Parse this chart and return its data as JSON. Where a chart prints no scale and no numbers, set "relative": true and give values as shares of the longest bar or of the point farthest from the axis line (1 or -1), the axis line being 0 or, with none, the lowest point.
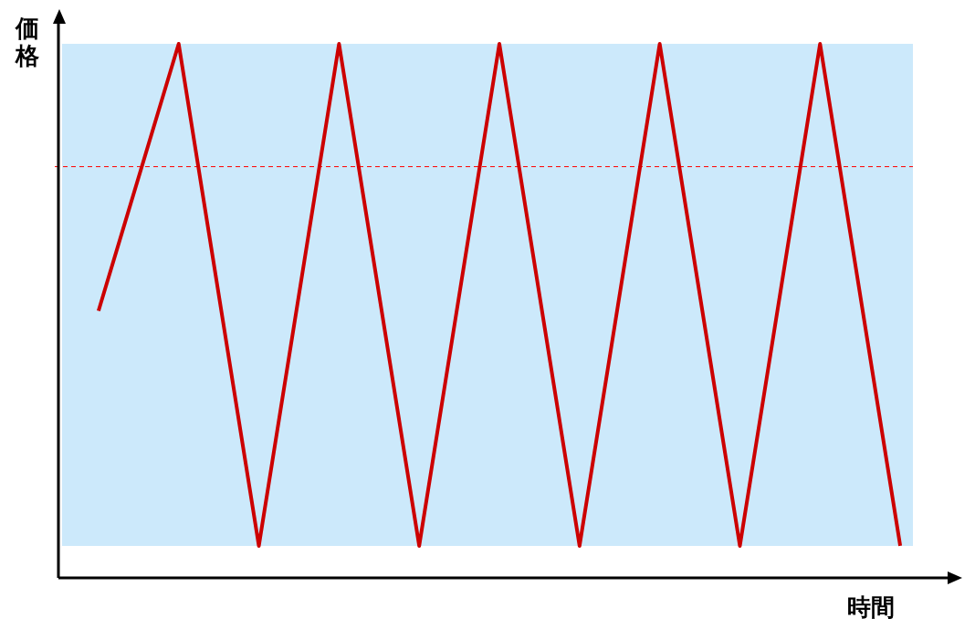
{
  "chart_data": {
    "type": "line",
    "xlabel": "時間",
    "ylabel": "価格",
    "relative": true,
    "categories": [
      null,
      null,
      null,
      null,
      null,
      null,
      null,
      null,
      null,
      null,
      null
    ],
    "series": [
      {
        "color": "#cc0000",
        "values": [
          0.5,
          1,
          0.06,
          1,
          0.06,
          1,
          0.06,
          1,
          0.06,
          1,
          0.06
        ]
      }
    ],
    "bands": [
      {
        "axis": "y",
        "from": 0.06,
        "to": 1,
        "color": "#cce9fb"
      }
    ],
    "ref_lines": [
      {
        "axis": "y",
        "value": 0.77,
        "color": "#ff0000",
        "line_style": "dashed"
      }
    ],
    "grid": false,
    "legend": false,
    "marker": "none",
    "line_style": "solid"
  }
}
